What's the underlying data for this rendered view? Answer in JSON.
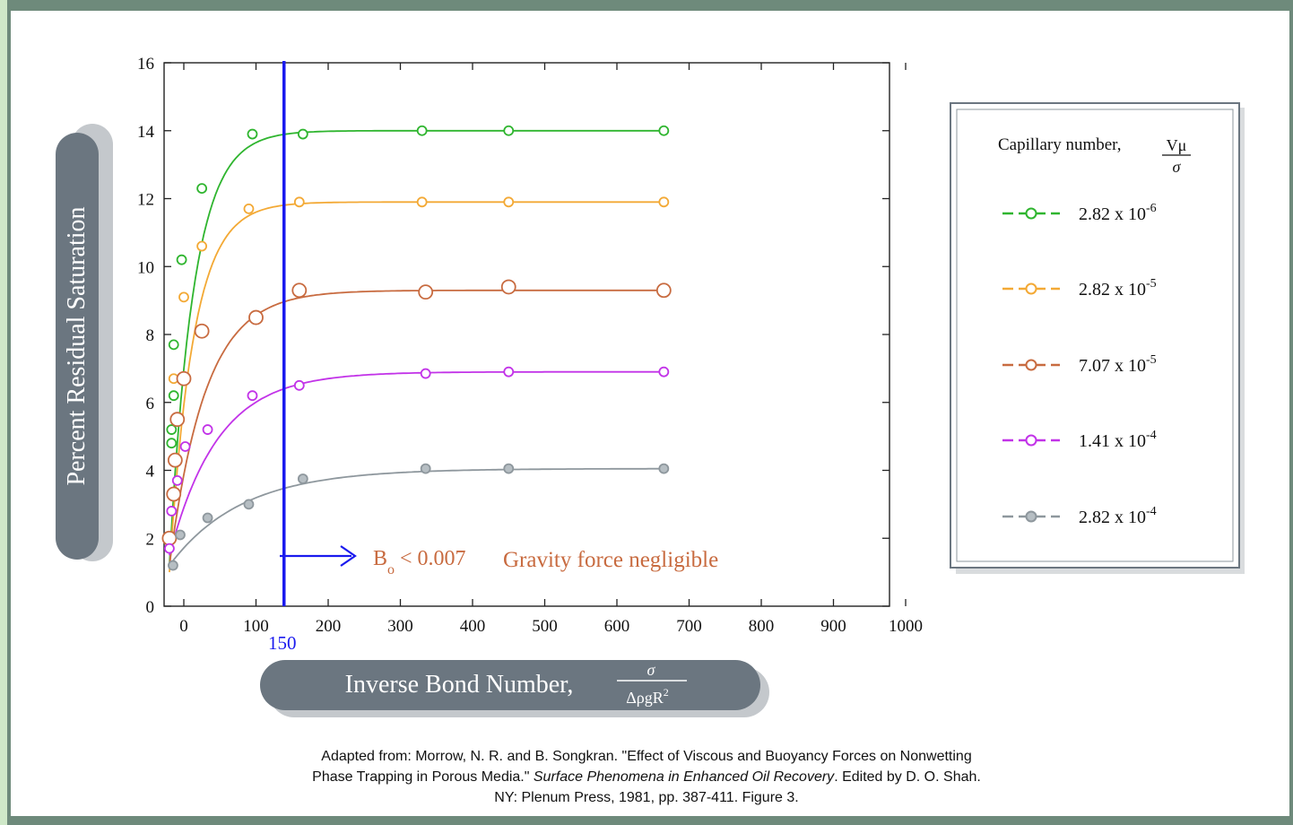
{
  "chart_data": {
    "type": "scatter",
    "ylabel": "Percent Residual Saturation",
    "xlabel": "Inverse Bond Number,",
    "xlabel_formula": {
      "numerator": "σ",
      "denominator": "ΔρgR",
      "denominator_sup": "2"
    },
    "xlim": [
      -20,
      1000
    ],
    "ylim": [
      0,
      16
    ],
    "x_ticks": [
      0,
      100,
      200,
      300,
      400,
      500,
      600,
      700,
      800,
      900,
      1000
    ],
    "y_ticks": [
      0,
      2,
      4,
      6,
      8,
      10,
      12,
      14,
      16
    ],
    "grid": false,
    "vertical_line": {
      "x": 150,
      "label": "150",
      "color": "#1a1aee"
    },
    "annotation": {
      "text_b": "B",
      "text_sub": "o",
      "text_rest": " < 0.007",
      "text_note": "Gravity force negligible",
      "color": "#c86b40"
    },
    "legend_title": "Capillary number,",
    "legend_formula": {
      "numerator": "Vμ",
      "denominator": "σ"
    },
    "legend_position": "right",
    "series": [
      {
        "name": "2.82 x 10",
        "exp": "-6",
        "color": "#2fb52f",
        "fill": "#ffffff",
        "size": "small",
        "points": [
          [
            -17,
            4.8
          ],
          [
            -17,
            5.2
          ],
          [
            -14,
            6.2
          ],
          [
            -14,
            7.7
          ],
          [
            -3,
            10.2
          ],
          [
            25,
            12.3
          ],
          [
            95,
            13.9
          ],
          [
            165,
            13.9
          ],
          [
            330,
            14.0
          ],
          [
            450,
            14.0
          ],
          [
            665,
            14.0
          ]
        ],
        "curve": {
          "a": 14.0,
          "b": 1.2,
          "k": 0.03
        }
      },
      {
        "name": "2.82 x 10",
        "exp": "-5",
        "color": "#f3a935",
        "fill": "#ffffff",
        "size": "small",
        "points": [
          [
            -14,
            6.7
          ],
          [
            0,
            9.1
          ],
          [
            25,
            10.6
          ],
          [
            90,
            11.7
          ],
          [
            160,
            11.9
          ],
          [
            330,
            11.9
          ],
          [
            450,
            11.9
          ],
          [
            665,
            11.9
          ]
        ],
        "curve": {
          "a": 11.9,
          "b": 1.0,
          "k": 0.03
        }
      },
      {
        "name": "7.07 x 10",
        "exp": "-5",
        "color": "#c86b40",
        "fill": "#ffffff",
        "size": "large",
        "points": [
          [
            -20,
            2.0
          ],
          [
            -14,
            3.3
          ],
          [
            -12,
            4.3
          ],
          [
            -9,
            5.5
          ],
          [
            0,
            6.7
          ],
          [
            25,
            8.1
          ],
          [
            100,
            8.5
          ],
          [
            160,
            9.3
          ],
          [
            335,
            9.25
          ],
          [
            450,
            9.4
          ],
          [
            665,
            9.3
          ]
        ],
        "curve": {
          "a": 9.3,
          "b": 1.2,
          "k": 0.02
        }
      },
      {
        "name": "1.41 x 10",
        "exp": "-4",
        "color": "#c233e8",
        "fill": "#ffffff",
        "size": "small",
        "points": [
          [
            -20,
            1.7
          ],
          [
            -17,
            2.8
          ],
          [
            -9,
            3.7
          ],
          [
            2,
            4.7
          ],
          [
            33,
            5.2
          ],
          [
            95,
            6.2
          ],
          [
            160,
            6.5
          ],
          [
            335,
            6.85
          ],
          [
            450,
            6.9
          ],
          [
            665,
            6.9
          ]
        ],
        "curve": {
          "a": 6.9,
          "b": 1.5,
          "k": 0.015
        }
      },
      {
        "name": "2.82 x 10",
        "exp": "-4",
        "color": "#8e979d",
        "fill": "#b6bec3",
        "size": "small",
        "points": [
          [
            -15,
            1.2
          ],
          [
            -5,
            2.1
          ],
          [
            33,
            2.6
          ],
          [
            90,
            3.0
          ],
          [
            165,
            3.75
          ],
          [
            335,
            4.05
          ],
          [
            450,
            4.05
          ],
          [
            665,
            4.05
          ]
        ],
        "curve": {
          "a": 4.05,
          "b": 1.2,
          "k": 0.01
        }
      }
    ]
  },
  "caption": {
    "line1": "Adapted from: Morrow, N. R. and B. Songkran. \"Effect of Viscous and Buoyancy Forces on Nonwetting",
    "line2_a": "Phase Trapping in Porous Media.\" ",
    "line2_italic": "Surface Phenomena in Enhanced Oil Recovery",
    "line2_b": ". Edited by D. O. Shah.",
    "line3": "NY: Plenum Press, 1981, pp. 387-411. Figure 3."
  }
}
